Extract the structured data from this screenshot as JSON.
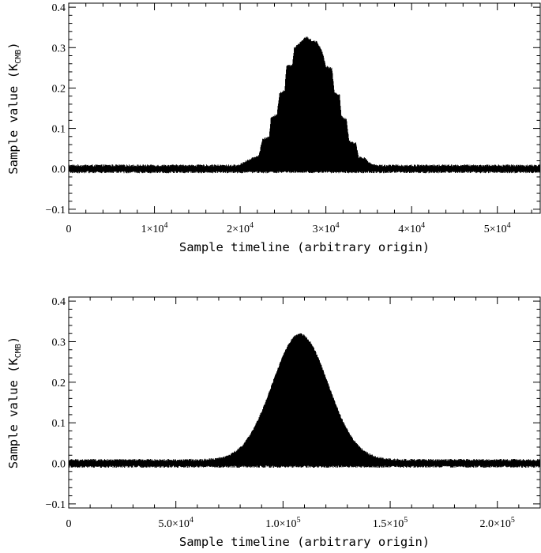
{
  "chart_data": [
    {
      "type": "line",
      "title": "",
      "xlabel": "Sample timeline (arbitrary origin)",
      "ylabel": "Sample value (K",
      "ylabel_sub": "CMB",
      "ylabel_close": ")",
      "xlim": [
        0,
        55000
      ],
      "ylim": [
        -0.11,
        0.41
      ],
      "x_ticks": [
        0,
        10000,
        20000,
        30000,
        40000,
        50000
      ],
      "x_tick_labels": [
        {
          "m": "0",
          "e": ""
        },
        {
          "m": "1×10",
          "e": "4"
        },
        {
          "m": "2×10",
          "e": "4"
        },
        {
          "m": "3×10",
          "e": "4"
        },
        {
          "m": "4×10",
          "e": "4"
        },
        {
          "m": "5×10",
          "e": "4"
        }
      ],
      "y_ticks": [
        -0.1,
        0.0,
        0.1,
        0.2,
        0.3,
        0.4
      ],
      "y_tick_labels": [
        "−0.1",
        "0.0",
        "0.1",
        "0.2",
        "0.3",
        "0.4"
      ],
      "series": [
        {
          "color": "#000000",
          "noise_level": 0.009,
          "envelope_kind": "stepped",
          "envelope": [
            [
              0,
              0.0
            ],
            [
              19800,
              0.0
            ],
            [
              20400,
              0.008
            ],
            [
              21200,
              0.015
            ],
            [
              22200,
              0.025
            ],
            [
              22600,
              0.065
            ],
            [
              23400,
              0.07
            ],
            [
              23600,
              0.12
            ],
            [
              24300,
              0.125
            ],
            [
              24600,
              0.18
            ],
            [
              25200,
              0.185
            ],
            [
              25400,
              0.245
            ],
            [
              26100,
              0.25
            ],
            [
              26300,
              0.29
            ],
            [
              27000,
              0.305
            ],
            [
              27700,
              0.318
            ],
            [
              28300,
              0.31
            ],
            [
              29000,
              0.305
            ],
            [
              29600,
              0.28
            ],
            [
              30000,
              0.245
            ],
            [
              30700,
              0.24
            ],
            [
              31000,
              0.18
            ],
            [
              31600,
              0.175
            ],
            [
              31800,
              0.12
            ],
            [
              32400,
              0.115
            ],
            [
              32700,
              0.06
            ],
            [
              33500,
              0.055
            ],
            [
              33800,
              0.02
            ],
            [
              34600,
              0.018
            ],
            [
              35200,
              0.004
            ],
            [
              36000,
              0.0
            ],
            [
              55000,
              0.0
            ]
          ]
        }
      ]
    },
    {
      "type": "line",
      "title": "",
      "xlabel": "Sample timeline (arbitrary origin)",
      "ylabel": "Sample value (K",
      "ylabel_sub": "CMB",
      "ylabel_close": ")",
      "xlim": [
        0,
        220000
      ],
      "ylim": [
        -0.11,
        0.41
      ],
      "x_ticks": [
        0,
        50000,
        100000,
        150000,
        200000
      ],
      "x_tick_labels": [
        {
          "m": "0",
          "e": ""
        },
        {
          "m": "5.0×10",
          "e": "4"
        },
        {
          "m": "1.0×10",
          "e": "5"
        },
        {
          "m": "1.5×10",
          "e": "5"
        },
        {
          "m": "2.0×10",
          "e": "5"
        }
      ],
      "y_ticks": [
        -0.1,
        0.0,
        0.1,
        0.2,
        0.3,
        0.4
      ],
      "y_tick_labels": [
        "−0.1",
        "0.0",
        "0.1",
        "0.2",
        "0.3",
        "0.4"
      ],
      "series": [
        {
          "color": "#000000",
          "noise_level": 0.009,
          "envelope_kind": "gaussian",
          "peak_x": 108000,
          "peak_y": 0.31,
          "sigma": 13000
        }
      ]
    }
  ]
}
